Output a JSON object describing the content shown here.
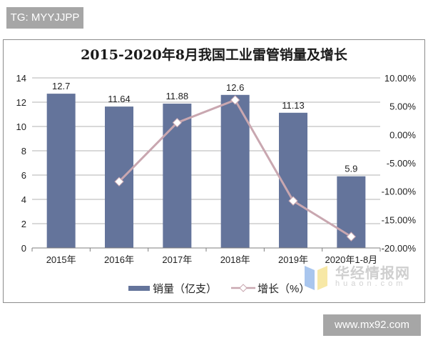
{
  "watermarks": {
    "top_left": "TG: MYYJJPP",
    "bottom_right": "www.mx92.com",
    "logo_cn": "华经情报网",
    "logo_en": "huaon.com"
  },
  "colors": {
    "bar": "#64749b",
    "line": "#c9a7b0",
    "marker_fill": "#ffffff",
    "grid": "#b3b3b3",
    "axis_text": "#222222"
  },
  "legend": {
    "bar_label": "销量（亿支）",
    "line_label": "增长（%）"
  },
  "chart_data": {
    "type": "bar+line",
    "title": "2015-2020年8月我国工业雷管销量及增长",
    "categories": [
      "2015年",
      "2016年",
      "2017年",
      "2018年",
      "2019年",
      "2020年1-8月"
    ],
    "series": [
      {
        "name": "销量（亿支）",
        "type": "bar",
        "axis": "left",
        "values": [
          12.7,
          11.64,
          11.88,
          12.6,
          11.13,
          5.9
        ],
        "data_labels": [
          "12.7",
          "11.64",
          "11.88",
          "12.6",
          "11.13",
          "5.9"
        ]
      },
      {
        "name": "增长（%）",
        "type": "line",
        "axis": "right",
        "values": [
          null,
          -8.3,
          2.1,
          6.1,
          -11.7,
          -18.0
        ]
      }
    ],
    "left_axis": {
      "ylim": [
        0,
        14
      ],
      "ticks": [
        "0",
        "2",
        "4",
        "6",
        "8",
        "10",
        "12",
        "14"
      ]
    },
    "right_axis": {
      "ylim": [
        -20,
        10
      ],
      "ticks": [
        "-20.00%",
        "-15.00%",
        "-10.00%",
        "-5.00%",
        "0.00%",
        "5.00%",
        "10.00%"
      ]
    },
    "grid": true,
    "legend_position": "bottom"
  }
}
